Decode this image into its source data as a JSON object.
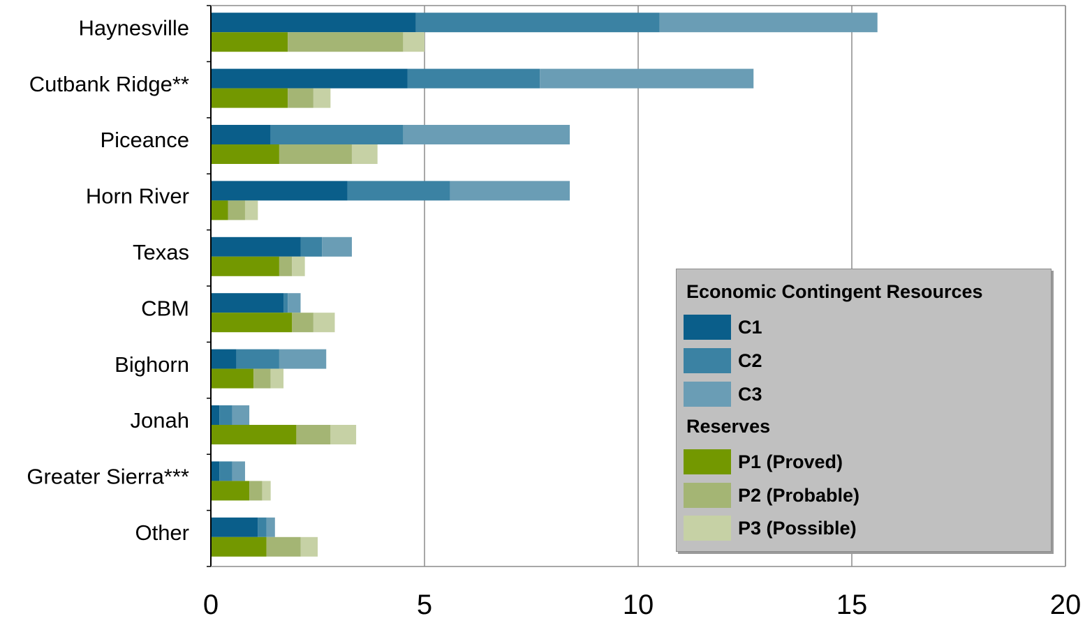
{
  "chart_data": {
    "type": "bar",
    "orientation": "horizontal",
    "stacked": true,
    "categories": [
      "Haynesville",
      "Cutbank Ridge**",
      "Piceance",
      "Horn River",
      "Texas",
      "CBM",
      "Bighorn",
      "Jonah",
      "Greater Sierra***",
      "Other"
    ],
    "groups": [
      {
        "name": "Economic Contingent Resources",
        "series": [
          {
            "name": "C1",
            "color": "#0a5e8a",
            "values": [
              4.8,
              4.6,
              1.4,
              3.2,
              2.1,
              1.7,
              0.6,
              0.2,
              0.2,
              1.1
            ]
          },
          {
            "name": "C2",
            "color": "#3b82a3",
            "values": [
              5.7,
              3.1,
              3.1,
              2.4,
              0.5,
              0.1,
              1.0,
              0.3,
              0.3,
              0.2
            ]
          },
          {
            "name": "C3",
            "color": "#6a9db5",
            "values": [
              5.1,
              5.0,
              3.9,
              2.8,
              0.7,
              0.3,
              1.1,
              0.4,
              0.3,
              0.2
            ]
          }
        ]
      },
      {
        "name": "Reserves",
        "series": [
          {
            "name": "P1 (Proved)",
            "color": "#739800",
            "values": [
              1.8,
              1.8,
              1.6,
              0.4,
              1.6,
              1.9,
              1.0,
              2.0,
              0.9,
              1.3
            ]
          },
          {
            "name": "P2 (Probable)",
            "color": "#a4b574",
            "values": [
              2.7,
              0.6,
              1.7,
              0.4,
              0.3,
              0.5,
              0.4,
              0.8,
              0.3,
              0.8
            ]
          },
          {
            "name": "P3 (Possible)",
            "color": "#c6d1a5",
            "values": [
              0.5,
              0.4,
              0.6,
              0.3,
              0.3,
              0.5,
              0.3,
              0.6,
              0.2,
              0.4
            ]
          }
        ]
      }
    ],
    "xlim": [
      0,
      20
    ],
    "xticks": [
      "0",
      "5",
      "10",
      "15",
      "20"
    ],
    "grid": true,
    "legend_position": "bottom-right",
    "title": "",
    "xlabel": "",
    "ylabel": ""
  },
  "legend": {
    "heading_1": "Economic Contingent Resources",
    "heading_2": "Reserves",
    "items": [
      {
        "label": "C1",
        "color": "#0a5e8a"
      },
      {
        "label": "C2",
        "color": "#3b82a3"
      },
      {
        "label": "C3",
        "color": "#6a9db5"
      },
      {
        "label": "P1 (Proved)",
        "color": "#739800"
      },
      {
        "label": "P2 (Probable)",
        "color": "#a4b574"
      },
      {
        "label": "P3 (Possible)",
        "color": "#c6d1a5"
      }
    ]
  }
}
